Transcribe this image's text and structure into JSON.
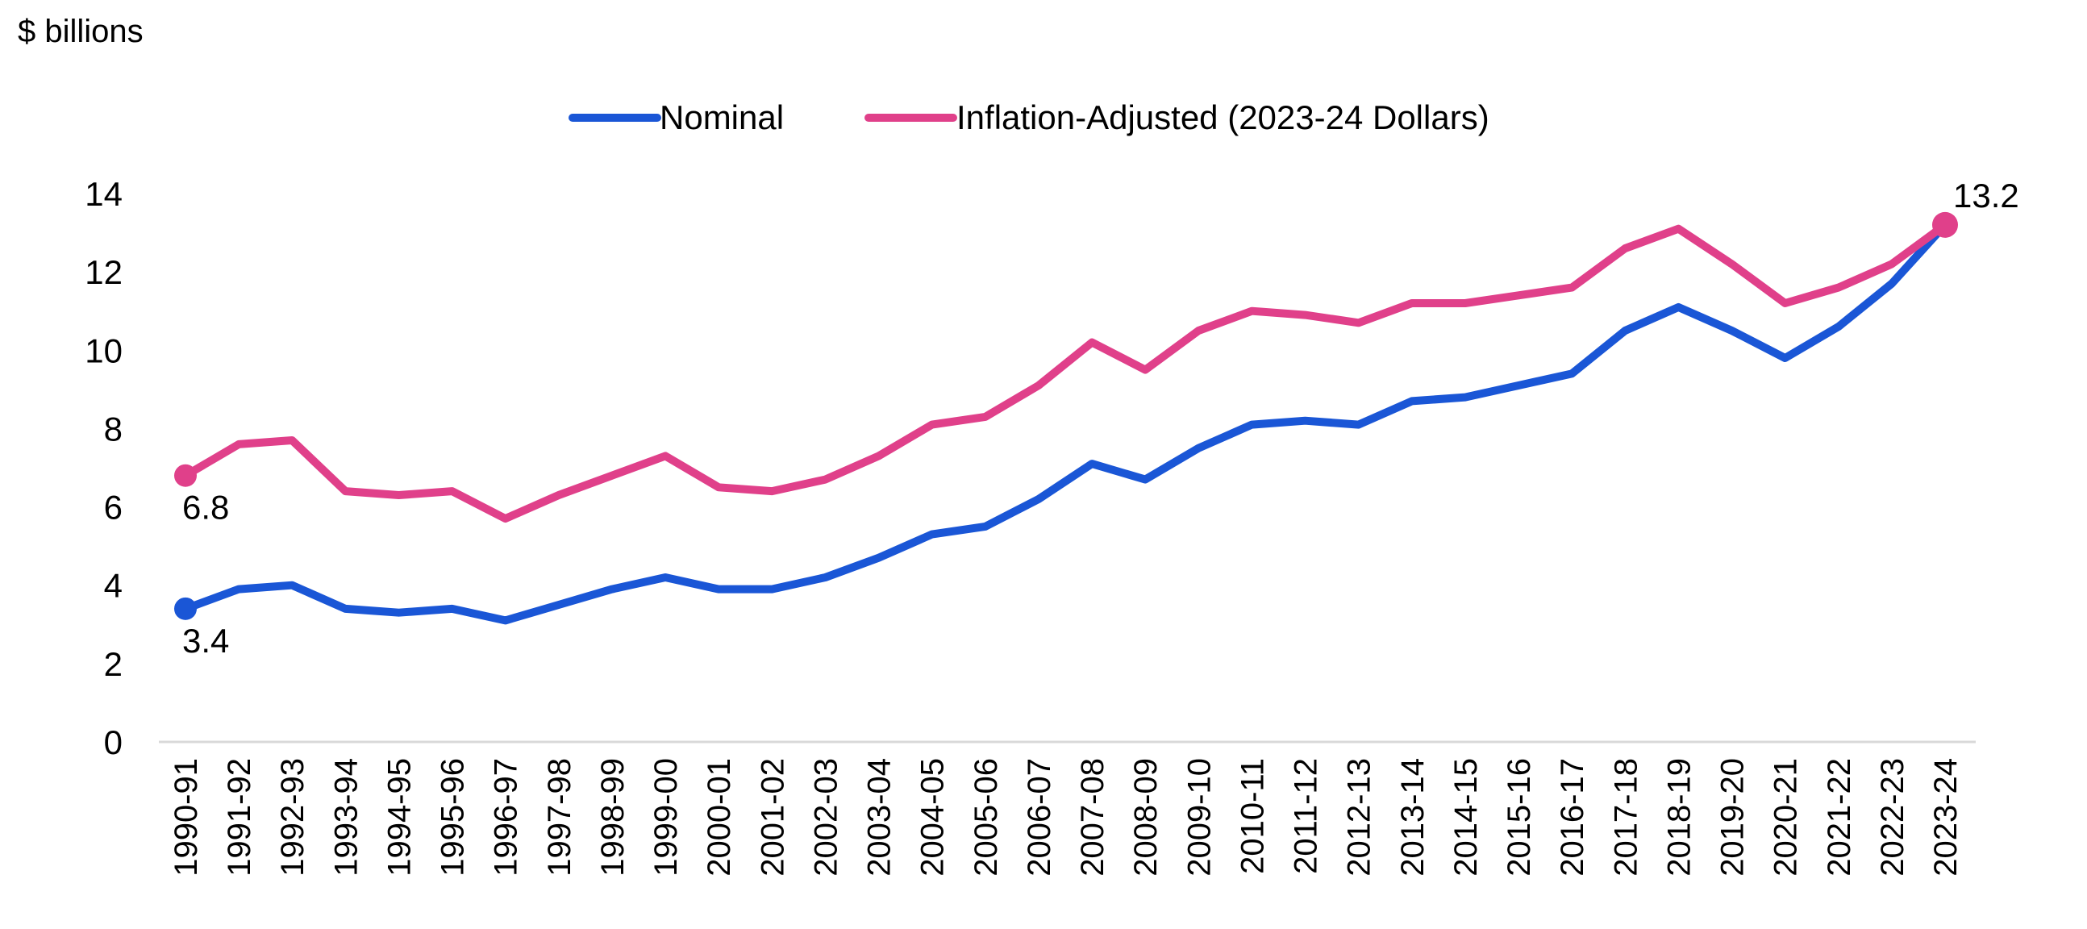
{
  "chart_data": {
    "type": "line",
    "unit_label": "$ billions",
    "categories": [
      "1990-91",
      "1991-92",
      "1992-93",
      "1993-94",
      "1994-95",
      "1995-96",
      "1996-97",
      "1997-98",
      "1998-99",
      "1999-00",
      "2000-01",
      "2001-02",
      "2002-03",
      "2003-04",
      "2004-05",
      "2005-06",
      "2006-07",
      "2007-08",
      "2008-09",
      "2009-10",
      "2010-11",
      "2011-12",
      "2012-13",
      "2013-14",
      "2014-15",
      "2015-16",
      "2016-17",
      "2017-18",
      "2018-19",
      "2019-20",
      "2020-21",
      "2021-22",
      "2022-23",
      "2023-24"
    ],
    "series": [
      {
        "name": "Nominal",
        "color": "#1a56d6",
        "values": [
          3.4,
          3.9,
          4.0,
          3.4,
          3.3,
          3.4,
          3.1,
          3.5,
          3.9,
          4.2,
          3.9,
          3.9,
          4.2,
          4.7,
          5.3,
          5.5,
          6.2,
          7.1,
          6.7,
          7.5,
          8.1,
          8.2,
          8.1,
          8.7,
          8.8,
          9.1,
          9.4,
          10.5,
          11.1,
          10.5,
          9.8,
          10.6,
          11.7,
          13.2
        ]
      },
      {
        "name": "Inflation-Adjusted (2023-24 Dollars)",
        "color": "#e0408a",
        "values": [
          6.8,
          7.6,
          7.7,
          6.4,
          6.3,
          6.4,
          5.7,
          6.3,
          6.8,
          7.3,
          6.5,
          6.4,
          6.7,
          7.3,
          8.1,
          8.3,
          9.1,
          10.2,
          9.5,
          10.5,
          11.0,
          10.9,
          10.7,
          11.2,
          11.2,
          11.4,
          11.6,
          12.6,
          13.1,
          12.2,
          11.2,
          11.6,
          12.2,
          13.2
        ]
      }
    ],
    "ylim": [
      0,
      14
    ],
    "yticks": [
      0,
      2,
      4,
      6,
      8,
      10,
      12,
      14
    ],
    "grid": false,
    "legend_position": "top-center",
    "annotations": [
      {
        "series": 1,
        "index": 0,
        "text": "6.8"
      },
      {
        "series": 0,
        "index": 0,
        "text": "3.4"
      },
      {
        "series": 1,
        "index": 33,
        "text": "13.2"
      }
    ]
  }
}
